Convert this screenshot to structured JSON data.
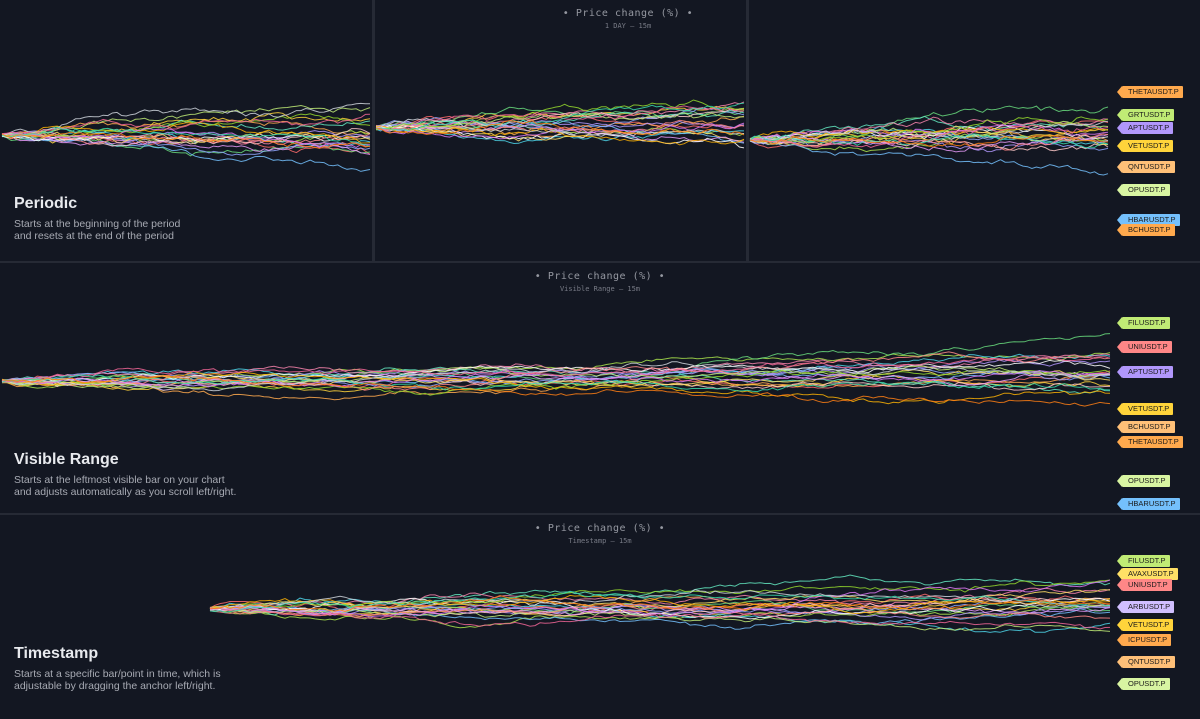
{
  "palette": [
    "#ff6b6b",
    "#ffa94d",
    "#ffd43b",
    "#a9e34b",
    "#69db7c",
    "#63e6be",
    "#4dd4e6",
    "#74c0fc",
    "#91a7ff",
    "#b197fc",
    "#f783ac",
    "#ffc9c9",
    "#ffe066",
    "#c0eb75",
    "#e599f7",
    "#ffffff",
    "#ff8787",
    "#fab005",
    "#94d82d",
    "#da77f2",
    "#ced4da",
    "#f06595",
    "#38d9a9",
    "#fd7e14"
  ],
  "sections": {
    "periodic": {
      "title": "Periodic",
      "description": "Starts at the beginning of the period\nand resets at the end of the period",
      "chart_title": "• Price change (%) •",
      "chart_subtitle": "1 DAY — 15m"
    },
    "visible": {
      "title": "Visible Range",
      "description": "Starts at the leftmost visible bar on your chart\nand adjusts automatically as you scroll left/right.",
      "chart_title": "• Price change (%) •",
      "chart_subtitle": "Visible Range — 15m"
    },
    "timestamp": {
      "title": "Timestamp",
      "description": "Starts at a specific bar/point in time, which is\nadjustable by dragging the anchor left/right.",
      "chart_title": "• Price change (%) •",
      "chart_subtitle": "Timestamp — 15m"
    }
  },
  "chart_data": [
    {
      "type": "line",
      "title": "• Price change (%) •",
      "subtitle": "1 DAY — 15m",
      "mode": "Periodic",
      "series_labels": [
        {
          "name": "THETAUSDT.P",
          "color": "#ffa94d"
        },
        {
          "name": "GRTUSDT.P",
          "color": "#c0eb75"
        },
        {
          "name": "APTUSDT.P",
          "color": "#b197fc"
        },
        {
          "name": "VETUSDT.P",
          "color": "#ffd43b"
        },
        {
          "name": "QNTUSDT.P",
          "color": "#ffc078"
        },
        {
          "name": "OPUSDT.P",
          "color": "#d8f5a2"
        },
        {
          "name": "HBARUSDT.P",
          "color": "#74c0fc"
        },
        {
          "name": "BCHUSDT.P",
          "color": "#ffa94d"
        }
      ]
    },
    {
      "type": "line",
      "title": "• Price change (%) •",
      "subtitle": "Visible Range — 15m",
      "mode": "Visible Range",
      "series_labels": [
        {
          "name": "FILUSDT.P",
          "color": "#c0eb75"
        },
        {
          "name": "UNIUSDT.P",
          "color": "#ff8787"
        },
        {
          "name": "APTUSDT.P",
          "color": "#b197fc"
        },
        {
          "name": "VETUSDT.P",
          "color": "#ffd43b"
        },
        {
          "name": "BCHUSDT.P",
          "color": "#ffc078"
        },
        {
          "name": "THETAUSDT.P",
          "color": "#ffa94d"
        },
        {
          "name": "OPUSDT.P",
          "color": "#d8f5a2"
        },
        {
          "name": "HBARUSDT.P",
          "color": "#74c0fc"
        }
      ]
    },
    {
      "type": "line",
      "title": "• Price change (%) •",
      "subtitle": "Timestamp — 15m",
      "mode": "Timestamp",
      "series_labels": [
        {
          "name": "FILUSDT.P",
          "color": "#c0eb75"
        },
        {
          "name": "AVAXUSDT.P",
          "color": "#ffe066"
        },
        {
          "name": "UNIUSDT.P",
          "color": "#ff8787"
        },
        {
          "name": "ARBUSDT.P",
          "color": "#d0bfff"
        },
        {
          "name": "VETUSDT.P",
          "color": "#ffd43b"
        },
        {
          "name": "ICPUSDT.P",
          "color": "#ffa94d"
        },
        {
          "name": "QNTUSDT.P",
          "color": "#ffc078"
        },
        {
          "name": "OPUSDT.P",
          "color": "#d8f5a2"
        }
      ]
    }
  ]
}
